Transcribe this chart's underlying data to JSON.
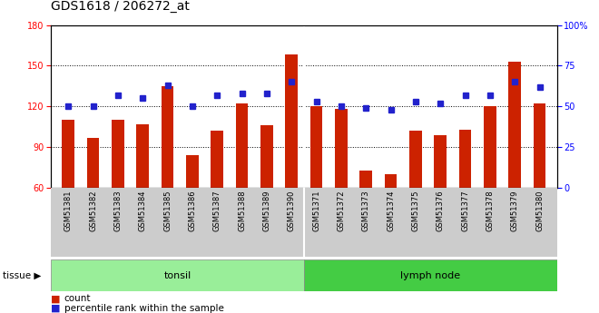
{
  "title": "GDS1618 / 206272_at",
  "categories": [
    "GSM51381",
    "GSM51382",
    "GSM51383",
    "GSM51384",
    "GSM51385",
    "GSM51386",
    "GSM51387",
    "GSM51388",
    "GSM51389",
    "GSM51390",
    "GSM51371",
    "GSM51372",
    "GSM51373",
    "GSM51374",
    "GSM51375",
    "GSM51376",
    "GSM51377",
    "GSM51378",
    "GSM51379",
    "GSM51380"
  ],
  "bar_values": [
    110,
    97,
    110,
    107,
    135,
    84,
    102,
    122,
    106,
    158,
    120,
    118,
    73,
    70,
    102,
    99,
    103,
    120,
    153,
    122
  ],
  "pct_values": [
    50,
    50,
    57,
    55,
    63,
    50,
    57,
    58,
    58,
    65,
    53,
    50,
    49,
    48,
    53,
    52,
    57,
    57,
    65,
    62
  ],
  "tonsil_count": 10,
  "lymph_count": 10,
  "ylim_left": [
    60,
    180
  ],
  "ylim_right": [
    0,
    100
  ],
  "yticks_left": [
    60,
    90,
    120,
    150,
    180
  ],
  "yticks_right": [
    0,
    25,
    50,
    75,
    100
  ],
  "bar_color": "#CC2200",
  "pct_color": "#2222CC",
  "tonsil_color": "#99EE99",
  "lymph_color": "#44CC44",
  "bg_color": "#CCCCCC",
  "title_fontsize": 10,
  "axis_tick_fontsize": 7,
  "tissue_fontsize": 8
}
